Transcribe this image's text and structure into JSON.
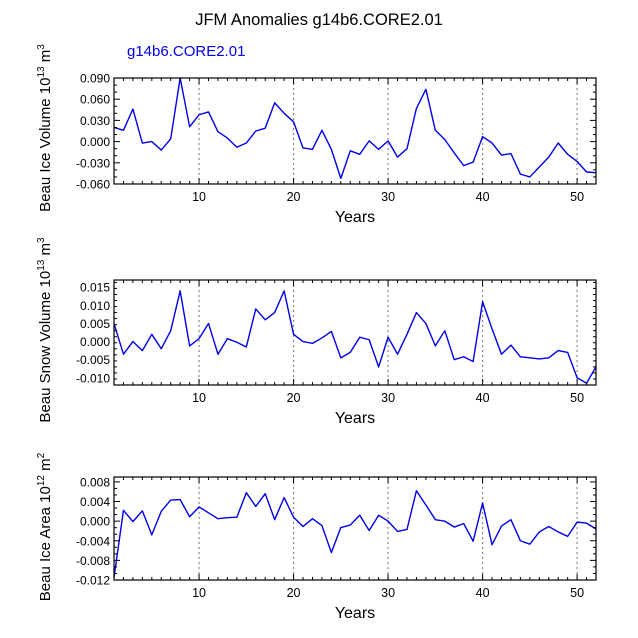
{
  "figure_title": "JFM Anomalies g14b6.CORE2.01",
  "series_label": "g14b6.CORE2.01",
  "colors": {
    "line": "#0000ee",
    "axis": "#000000",
    "ref": "#888888",
    "label": "#0000ee"
  },
  "chart_data": [
    {
      "type": "line",
      "title": "",
      "xlabel": "Years",
      "ylabel": "Beau Ice Volume 10^13 m^3",
      "ylabel_parts": {
        "base": "Beau Ice Volume 10",
        "exp1": "13",
        "mid": " m",
        "exp2": "3"
      },
      "xlim": [
        1,
        52
      ],
      "ylim": [
        -0.06,
        0.09
      ],
      "xticks": [
        10,
        20,
        30,
        40,
        50
      ],
      "yticks": [
        -0.06,
        -0.03,
        0.0,
        0.03,
        0.06,
        0.09
      ],
      "ytick_labels": [
        "-0.060",
        "-0.030",
        "0.000",
        "0.030",
        "0.060",
        "0.090"
      ],
      "ref_lines_x": [
        10,
        20,
        30,
        40,
        50
      ],
      "series": [
        {
          "name": "g14b6.CORE2.01",
          "x": [
            1,
            2,
            3,
            4,
            5,
            6,
            7,
            8,
            9,
            10,
            11,
            12,
            13,
            14,
            15,
            16,
            17,
            18,
            19,
            20,
            21,
            22,
            23,
            24,
            25,
            26,
            27,
            28,
            29,
            30,
            31,
            32,
            33,
            34,
            35,
            36,
            37,
            38,
            39,
            40,
            41,
            42,
            43,
            44,
            45,
            46,
            47,
            48,
            49,
            50,
            51,
            52
          ],
          "values": [
            0.02,
            0.016,
            0.046,
            -0.002,
            0.0,
            -0.012,
            0.004,
            0.09,
            0.021,
            0.038,
            0.042,
            0.014,
            0.005,
            -0.008,
            -0.002,
            0.015,
            0.019,
            0.055,
            0.04,
            0.028,
            -0.009,
            -0.011,
            0.016,
            -0.011,
            -0.052,
            -0.013,
            -0.018,
            0.001,
            -0.011,
            0.001,
            -0.022,
            -0.01,
            0.047,
            0.074,
            0.016,
            0.003,
            -0.016,
            -0.034,
            -0.029,
            0.007,
            -0.002,
            -0.019,
            -0.017,
            -0.046,
            -0.05,
            -0.036,
            -0.022,
            -0.002,
            -0.018,
            -0.028,
            -0.043,
            -0.044
          ]
        }
      ]
    },
    {
      "type": "line",
      "title": "",
      "xlabel": "Years",
      "ylabel": "Beau Snow Volume 10^13 m^3",
      "ylabel_parts": {
        "base": "Beau Snow Volume 10",
        "exp1": "13",
        "mid": " m",
        "exp2": "3"
      },
      "xlim": [
        1,
        52
      ],
      "ylim": [
        -0.012,
        0.017
      ],
      "xticks": [
        10,
        20,
        30,
        40,
        50
      ],
      "yticks": [
        -0.01,
        -0.005,
        0.0,
        0.005,
        0.01,
        0.015
      ],
      "ytick_labels": [
        "-0.010",
        "-0.005",
        "0.000",
        "0.005",
        "0.010",
        "0.015"
      ],
      "ref_lines_x": [
        10,
        20,
        30,
        40,
        50
      ],
      "series": [
        {
          "name": "g14b6.CORE2.01",
          "x": [
            1,
            2,
            3,
            4,
            5,
            6,
            7,
            8,
            9,
            10,
            11,
            12,
            13,
            14,
            15,
            16,
            17,
            18,
            19,
            20,
            21,
            22,
            23,
            24,
            25,
            26,
            27,
            28,
            29,
            30,
            31,
            32,
            33,
            34,
            35,
            36,
            37,
            38,
            39,
            40,
            41,
            42,
            43,
            44,
            45,
            46,
            47,
            48,
            49,
            50,
            51,
            52
          ],
          "values": [
            0.005,
            -0.0035,
            0.0,
            -0.0025,
            0.002,
            -0.002,
            0.003,
            0.014,
            -0.0012,
            0.0008,
            0.005,
            -0.0035,
            0.0008,
            -0.0002,
            -0.0015,
            0.009,
            0.006,
            0.008,
            0.014,
            0.002,
            0.0,
            -0.0005,
            0.001,
            0.0028,
            -0.0045,
            -0.003,
            0.0012,
            0.0005,
            -0.007,
            0.0012,
            -0.0035,
            0.002,
            0.008,
            0.005,
            -0.0012,
            0.003,
            -0.005,
            -0.0042,
            -0.0055,
            0.011,
            0.0035,
            -0.0035,
            -0.001,
            -0.0042,
            -0.0045,
            -0.0048,
            -0.0045,
            -0.0025,
            -0.003,
            -0.01,
            -0.0115,
            -0.007
          ]
        }
      ]
    },
    {
      "type": "line",
      "title": "",
      "xlabel": "Years",
      "ylabel": "Beau Ice Area 10^12 m^2",
      "ylabel_parts": {
        "base": "Beau Ice Area 10",
        "exp1": "12",
        "mid": " m",
        "exp2": "2"
      },
      "xlim": [
        1,
        52
      ],
      "ylim": [
        -0.012,
        0.009
      ],
      "xticks": [
        10,
        20,
        30,
        40,
        50
      ],
      "yticks": [
        -0.012,
        -0.008,
        -0.004,
        0.0,
        0.004,
        0.008
      ],
      "ytick_labels": [
        "-0.012",
        "-0.008",
        "-0.004",
        "0.000",
        "0.004",
        "0.008"
      ],
      "ref_lines_x": [
        10,
        20,
        30,
        40,
        50
      ],
      "series": [
        {
          "name": "g14b6.CORE2.01",
          "x": [
            1,
            2,
            3,
            4,
            5,
            6,
            7,
            8,
            9,
            10,
            11,
            12,
            13,
            14,
            15,
            16,
            17,
            18,
            19,
            20,
            21,
            22,
            23,
            24,
            25,
            26,
            27,
            28,
            29,
            30,
            31,
            32,
            33,
            34,
            35,
            36,
            37,
            38,
            39,
            40,
            41,
            42,
            43,
            44,
            45,
            46,
            47,
            48,
            49,
            50,
            51,
            52
          ],
          "values": [
            -0.0115,
            0.0022,
            -0.0001,
            0.0021,
            -0.0028,
            0.002,
            0.0043,
            0.0044,
            0.0009,
            0.0029,
            0.0017,
            0.0005,
            0.0007,
            0.0008,
            0.0058,
            0.003,
            0.0056,
            0.0003,
            0.0048,
            0.0008,
            -0.0011,
            0.0005,
            -0.0009,
            -0.0064,
            -0.0013,
            -0.0008,
            0.0012,
            -0.0019,
            0.0012,
            0.0,
            -0.0021,
            -0.0017,
            0.0062,
            0.0033,
            0.0003,
            0.0,
            -0.0012,
            -0.0005,
            -0.0041,
            0.0037,
            -0.0048,
            -0.001,
            0.0003,
            -0.004,
            -0.0047,
            -0.0022,
            -0.0011,
            -0.0022,
            -0.0031,
            -0.0002,
            -0.0004,
            -0.0016
          ]
        }
      ]
    }
  ]
}
